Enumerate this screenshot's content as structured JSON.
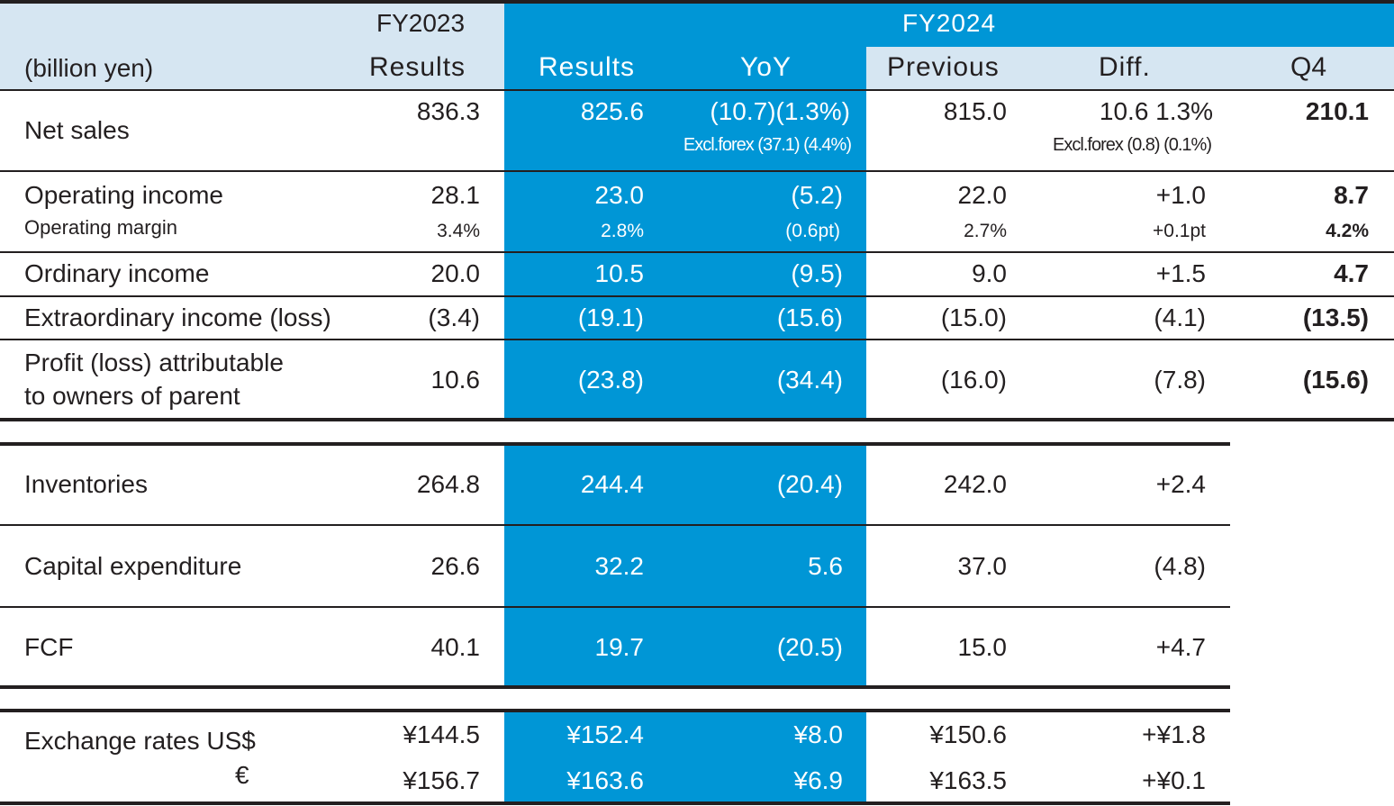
{
  "colors": {
    "accent_blue": "#0096d6",
    "header_light_blue": "#d6e6f2",
    "rule": "#231f20"
  },
  "header": {
    "fy2023": "FY2023",
    "fy2024": "FY2024",
    "unit": "(billion yen)",
    "col_fy2023_results": "Results",
    "col_results": "Results",
    "col_yoy": "YoY",
    "col_previous": "Previous",
    "col_diff": "Diff.",
    "col_q4": "Q4"
  },
  "rows": {
    "net_sales": {
      "label": "Net sales",
      "fy2023": "836.3",
      "results": "825.6",
      "yoy": "(10.7)(1.3%)",
      "yoy_excl": "Excl.forex (37.1) (4.4%)",
      "previous": "815.0",
      "diff": "10.6  1.3%",
      "diff_excl": "Excl.forex (0.8) (0.1%)",
      "q4": "210.1"
    },
    "operating_income": {
      "label": "Operating income",
      "fy2023": "28.1",
      "results": "23.0",
      "yoy": "(5.2)",
      "previous": "22.0",
      "diff": "+1.0",
      "q4": "8.7"
    },
    "operating_margin": {
      "label": "Operating margin",
      "fy2023": "3.4%",
      "results": "2.8%",
      "yoy": "(0.6pt)",
      "previous": "2.7%",
      "diff": "+0.1pt",
      "q4": "4.2%"
    },
    "ordinary_income": {
      "label": "Ordinary income",
      "fy2023": "20.0",
      "results": "10.5",
      "yoy": "(9.5)",
      "previous": "9.0",
      "diff": "+1.5",
      "q4": "4.7"
    },
    "extraordinary": {
      "label": "Extraordinary income (loss)",
      "fy2023": "(3.4)",
      "results": "(19.1)",
      "yoy": "(15.6)",
      "previous": "(15.0)",
      "diff": "(4.1)",
      "q4": "(13.5)"
    },
    "profit": {
      "label_line1": "Profit (loss) attributable",
      "label_line2": "to owners of parent",
      "fy2023": "10.6",
      "results": "(23.8)",
      "yoy": "(34.4)",
      "previous": "(16.0)",
      "diff": "(7.8)",
      "q4": "(15.6)"
    },
    "inventories": {
      "label": "Inventories",
      "fy2023": "264.8",
      "results": "244.4",
      "yoy": "(20.4)",
      "previous": "242.0",
      "diff": "+2.4"
    },
    "capex": {
      "label": "Capital expenditure",
      "fy2023": "26.6",
      "results": "32.2",
      "yoy": "5.6",
      "previous": "37.0",
      "diff": "(4.8)"
    },
    "fcf": {
      "label": "FCF",
      "fy2023": "40.1",
      "results": "19.7",
      "yoy": "(20.5)",
      "previous": "15.0",
      "diff": "+4.7"
    },
    "fx_usd": {
      "label": "Exchange rates US$",
      "fy2023": "¥144.5",
      "results": "¥152.4",
      "yoy": "¥8.0",
      "previous": "¥150.6",
      "diff": "+¥1.8"
    },
    "fx_eur": {
      "label": "€",
      "fy2023": "¥156.7",
      "results": "¥163.6",
      "yoy": "¥6.9",
      "previous": "¥163.5",
      "diff": "+¥0.1"
    }
  }
}
